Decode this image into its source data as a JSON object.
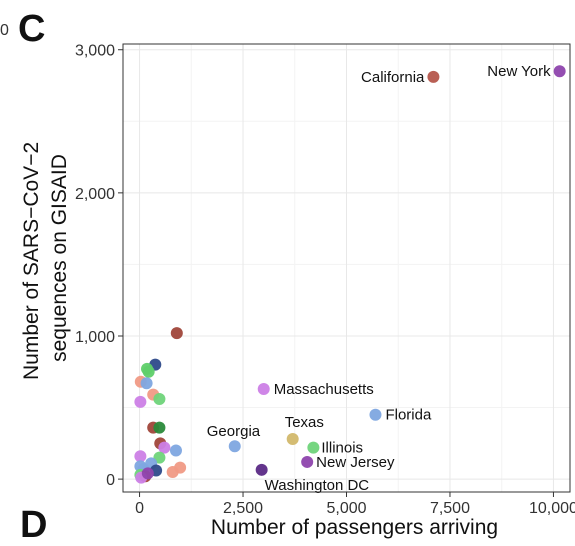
{
  "panel_label": "C",
  "next_panel_label": "D",
  "clipped_left_text": "0",
  "chart_data": {
    "type": "scatter",
    "title": "",
    "xlabel": "Number of passengers arriving",
    "ylabel": [
      "Number of SARS−CoV−2",
      "sequences on GISAID"
    ],
    "xlim": [
      -400,
      10400
    ],
    "ylim": [
      -90,
      3040
    ],
    "x_ticks": [
      0,
      2500,
      5000,
      7500,
      10000
    ],
    "x_tick_labels": [
      "0",
      "2,500",
      "5,000",
      "7,500",
      "10,000"
    ],
    "y_ticks": [
      0,
      1000,
      2000,
      3000
    ],
    "y_tick_labels": [
      "0",
      "1,000",
      "2,000",
      "3,000"
    ],
    "grid": true,
    "points": [
      {
        "label": "New York",
        "x": 10150,
        "y": 2850,
        "color": "#8e44ad"
      },
      {
        "label": "California",
        "x": 7100,
        "y": 2810,
        "color": "#b5564b"
      },
      {
        "label": "Massachusetts",
        "x": 3000,
        "y": 630,
        "color": "#cc7fe6"
      },
      {
        "label": "Florida",
        "x": 5700,
        "y": 450,
        "color": "#7ea6e0"
      },
      {
        "label": "Texas",
        "x": 3700,
        "y": 280,
        "color": "#d2b86b"
      },
      {
        "label": "Georgia",
        "x": 2300,
        "y": 230,
        "color": "#7ea6e0"
      },
      {
        "label": "Illinois",
        "x": 4200,
        "y": 220,
        "color": "#6fd47a"
      },
      {
        "label": "New Jersey",
        "x": 4050,
        "y": 120,
        "color": "#8e44ad"
      },
      {
        "label": "Washington DC",
        "x": 2950,
        "y": 65,
        "color": "#5b2a86"
      },
      {
        "label": "",
        "x": 900,
        "y": 1020,
        "color": "#a0463a"
      },
      {
        "label": "",
        "x": 380,
        "y": 800,
        "color": "#2e4a8a"
      },
      {
        "label": "",
        "x": 180,
        "y": 770,
        "color": "#5fcf6a"
      },
      {
        "label": "",
        "x": 220,
        "y": 750,
        "color": "#5fcf6a"
      },
      {
        "label": "",
        "x": 30,
        "y": 680,
        "color": "#f09a85"
      },
      {
        "label": "",
        "x": 170,
        "y": 670,
        "color": "#7ea6e0"
      },
      {
        "label": "",
        "x": 330,
        "y": 590,
        "color": "#f09a85"
      },
      {
        "label": "",
        "x": 480,
        "y": 560,
        "color": "#6fd47a"
      },
      {
        "label": "",
        "x": 20,
        "y": 540,
        "color": "#cc7fe6"
      },
      {
        "label": "",
        "x": 330,
        "y": 360,
        "color": "#a0463a"
      },
      {
        "label": "",
        "x": 480,
        "y": 360,
        "color": "#2a8a3a"
      },
      {
        "label": "",
        "x": 500,
        "y": 250,
        "color": "#a0463a"
      },
      {
        "label": "",
        "x": 600,
        "y": 220,
        "color": "#cc7fe6"
      },
      {
        "label": "",
        "x": 880,
        "y": 200,
        "color": "#7ea6e0"
      },
      {
        "label": "",
        "x": 20,
        "y": 160,
        "color": "#cc7fe6"
      },
      {
        "label": "",
        "x": 480,
        "y": 150,
        "color": "#6fd47a"
      },
      {
        "label": "",
        "x": 280,
        "y": 110,
        "color": "#7ea6e0"
      },
      {
        "label": "",
        "x": 980,
        "y": 80,
        "color": "#f09a85"
      },
      {
        "label": "",
        "x": 20,
        "y": 90,
        "color": "#7ea6e0"
      },
      {
        "label": "",
        "x": 100,
        "y": 70,
        "color": "#7ea6e0"
      },
      {
        "label": "",
        "x": 400,
        "y": 60,
        "color": "#2e4a8a"
      },
      {
        "label": "",
        "x": 800,
        "y": 50,
        "color": "#f09a85"
      },
      {
        "label": "",
        "x": 20,
        "y": 30,
        "color": "#6fd47a"
      },
      {
        "label": "",
        "x": 140,
        "y": 20,
        "color": "#a0463a"
      },
      {
        "label": "",
        "x": 40,
        "y": 10,
        "color": "#cc7fe6"
      },
      {
        "label": "",
        "x": 200,
        "y": 40,
        "color": "#8e44ad"
      }
    ]
  }
}
